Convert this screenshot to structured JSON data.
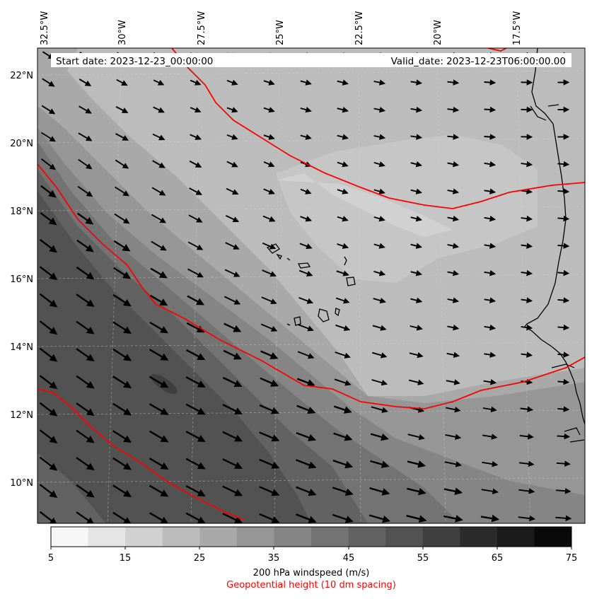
{
  "header": {
    "start_date": "Start date: 2023-12-23_00:00:00",
    "valid_date": "Valid_date: 2023-12-23T06:00:00.00"
  },
  "map": {
    "lon_labels": [
      "32.5°W",
      "30°W",
      "27.5°W",
      "25°W",
      "22.5°W",
      "20°W",
      "17.5°W"
    ],
    "lat_labels": [
      "22°N",
      "20°N",
      "18°N",
      "16°N",
      "14°N",
      "12°N",
      "10°N"
    ],
    "contour_color": "#ff0000",
    "coast_color": "#000000"
  },
  "colorbar": {
    "tick_labels": [
      "5",
      "15",
      "25",
      "35",
      "45",
      "55",
      "65",
      "75"
    ],
    "shades": [
      "#f7f7f7",
      "#e5e5e5",
      "#d1d1d1",
      "#bcbcbc",
      "#a9a9a9",
      "#969696",
      "#858585",
      "#737373",
      "#626262",
      "#525252",
      "#3f3f3f",
      "#2b2b2b",
      "#1a1a1a",
      "#0a0a0a"
    ],
    "label": "200 hPa windspeed (m/s)",
    "sublabel": "Geopotential height (10 dm spacing)"
  }
}
